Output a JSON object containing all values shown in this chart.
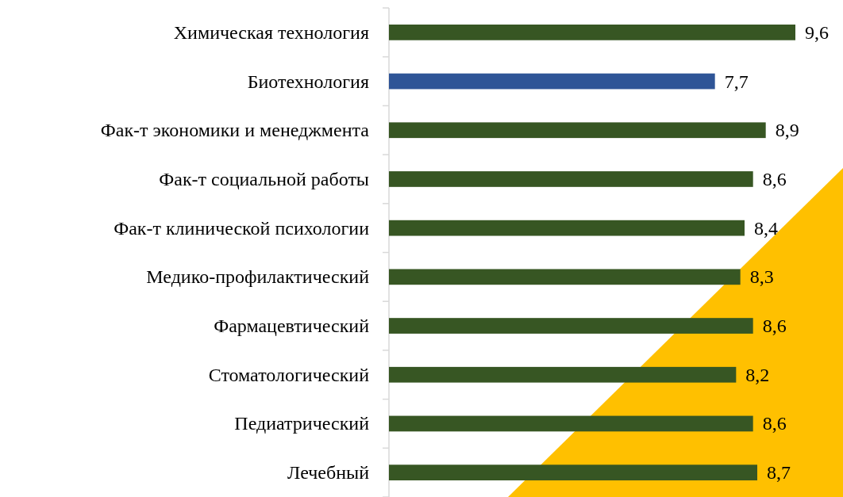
{
  "chart_data": {
    "type": "bar",
    "orientation": "horizontal",
    "categories": [
      "Химическая технология",
      "Биотехнология",
      "Фак-т экономики и менеджмента",
      "Фак-т социальной работы",
      "Фак-т клинической психологии",
      "Медико-профилактический",
      "Фармацевтический",
      "Стоматологический",
      "Педиатрический",
      "Лечебный"
    ],
    "values": [
      9.6,
      7.7,
      8.9,
      8.6,
      8.4,
      8.3,
      8.6,
      8.2,
      8.6,
      8.7
    ],
    "value_labels": [
      "9,6",
      "7,7",
      "8,9",
      "8,6",
      "8,4",
      "8,3",
      "8,6",
      "8,2",
      "8,6",
      "8,7"
    ],
    "colors": [
      "#375623",
      "#2f5597",
      "#375623",
      "#375623",
      "#375623",
      "#375623",
      "#375623",
      "#375623",
      "#375623",
      "#375623"
    ]
  }
}
